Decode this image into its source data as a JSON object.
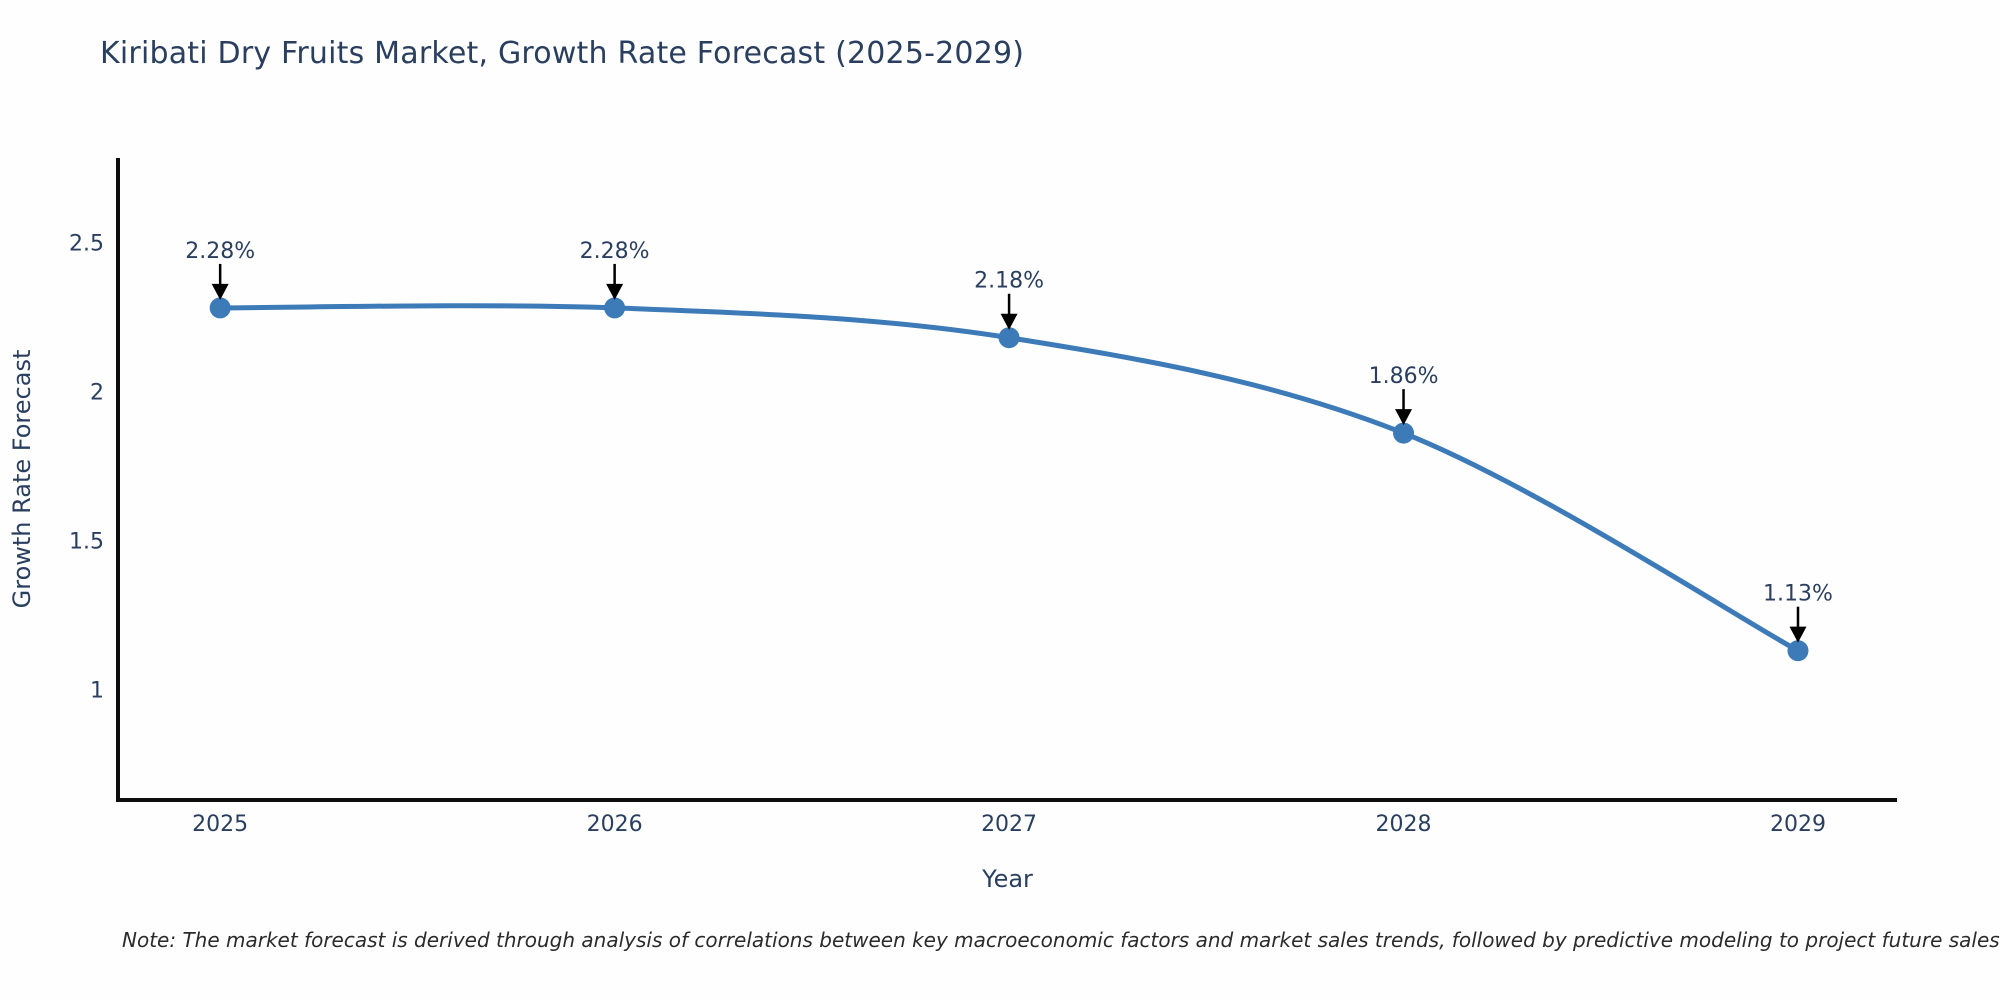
{
  "title": "Kiribati Dry Fruits Market, Growth Rate Forecast (2025-2029)",
  "note": "Note: The market forecast is derived through analysis of correlations between key macroeconomic factors and market sales trends, followed by predictive modeling to project future sales",
  "chart_data": {
    "type": "line",
    "title": "Kiribati Dry Fruits Market, Growth Rate Forecast (2025-2029)",
    "xlabel": "Year",
    "ylabel": "Growth Rate Forecast",
    "x": [
      2025,
      2026,
      2027,
      2028,
      2029
    ],
    "series": [
      {
        "name": "Growth Rate Forecast",
        "values": [
          2.28,
          2.28,
          2.18,
          1.86,
          1.13
        ]
      }
    ],
    "point_labels": [
      "2.28%",
      "2.28%",
      "2.18%",
      "1.86%",
      "1.13%"
    ],
    "xticks": [
      2025,
      2026,
      2027,
      2028,
      2029
    ],
    "xtick_labels": [
      "2025",
      "2026",
      "2027",
      "2028",
      "2029"
    ],
    "yticks": [
      1,
      1.5,
      2,
      2.5
    ],
    "ytick_labels": [
      "1",
      "1.5",
      "2",
      "2.5"
    ],
    "xlim": [
      2024.741,
      2029.251
    ],
    "ylim": [
      0.629,
      2.783
    ],
    "grid": false,
    "legend": "none",
    "line_shape": "spline"
  },
  "colors": {
    "text": "#2a3f5f",
    "note_text": "#2b2b2b",
    "line": "#3d7ab8",
    "marker": "#3d7ab8",
    "axis": "#0d0d0d",
    "arrow": "#000000",
    "background": "#fefefe"
  }
}
